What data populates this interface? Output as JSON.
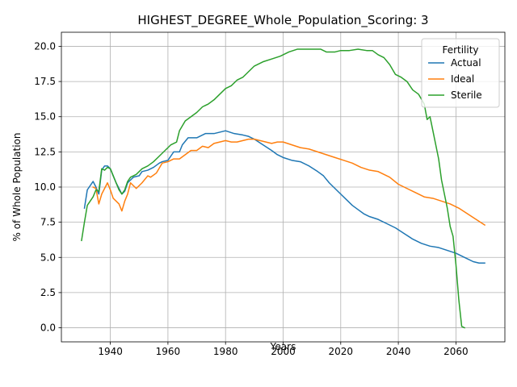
{
  "chart_data": {
    "type": "line",
    "title": "HIGHEST_DEGREE_Whole_Population_Scoring: 3",
    "xlabel": "Years",
    "ylabel": "% of Whole Population",
    "xlim": [
      1923,
      2077
    ],
    "ylim": [
      -1.0,
      21.0
    ],
    "xticks": [
      1940,
      1960,
      1980,
      2000,
      2020,
      2040,
      2060
    ],
    "yticks": [
      0.0,
      2.5,
      5.0,
      7.5,
      10.0,
      12.5,
      15.0,
      17.5,
      20.0
    ],
    "xtick_labels": [
      "1940",
      "1960",
      "1980",
      "2000",
      "2020",
      "2040",
      "2060"
    ],
    "ytick_labels": [
      "0.0",
      "2.5",
      "5.0",
      "7.5",
      "10.0",
      "12.5",
      "15.0",
      "17.5",
      "20.0"
    ],
    "grid": true,
    "legend": {
      "title": "Fertility",
      "placement": "top-right"
    },
    "series": [
      {
        "name": "Actual",
        "color": "#1f77b4",
        "points": [
          [
            1931,
            8.5
          ],
          [
            1932,
            9.8
          ],
          [
            1934,
            10.4
          ],
          [
            1935,
            10.0
          ],
          [
            1936,
            9.5
          ],
          [
            1937,
            11.2
          ],
          [
            1938,
            11.5
          ],
          [
            1939,
            11.5
          ],
          [
            1940,
            11.3
          ],
          [
            1941,
            10.8
          ],
          [
            1942,
            10.3
          ],
          [
            1944,
            9.5
          ],
          [
            1945,
            9.7
          ],
          [
            1946,
            10.3
          ],
          [
            1948,
            10.7
          ],
          [
            1950,
            10.8
          ],
          [
            1951,
            11.1
          ],
          [
            1953,
            11.2
          ],
          [
            1955,
            11.4
          ],
          [
            1957,
            11.7
          ],
          [
            1958,
            11.8
          ],
          [
            1960,
            11.9
          ],
          [
            1962,
            12.5
          ],
          [
            1964,
            12.5
          ],
          [
            1965,
            13.0
          ],
          [
            1967,
            13.5
          ],
          [
            1970,
            13.5
          ],
          [
            1973,
            13.8
          ],
          [
            1976,
            13.8
          ],
          [
            1980,
            14.0
          ],
          [
            1983,
            13.8
          ],
          [
            1986,
            13.7
          ],
          [
            1988,
            13.6
          ],
          [
            1990,
            13.4
          ],
          [
            1993,
            13.0
          ],
          [
            1996,
            12.6
          ],
          [
            1998,
            12.3
          ],
          [
            2000,
            12.1
          ],
          [
            2003,
            11.9
          ],
          [
            2006,
            11.8
          ],
          [
            2009,
            11.5
          ],
          [
            2012,
            11.1
          ],
          [
            2014,
            10.8
          ],
          [
            2016,
            10.3
          ],
          [
            2018,
            9.9
          ],
          [
            2020,
            9.5
          ],
          [
            2022,
            9.1
          ],
          [
            2024,
            8.7
          ],
          [
            2026,
            8.4
          ],
          [
            2028,
            8.1
          ],
          [
            2030,
            7.9
          ],
          [
            2033,
            7.7
          ],
          [
            2036,
            7.4
          ],
          [
            2039,
            7.1
          ],
          [
            2042,
            6.7
          ],
          [
            2045,
            6.3
          ],
          [
            2048,
            6.0
          ],
          [
            2051,
            5.8
          ],
          [
            2054,
            5.7
          ],
          [
            2057,
            5.5
          ],
          [
            2060,
            5.3
          ],
          [
            2063,
            5.0
          ],
          [
            2066,
            4.7
          ],
          [
            2068,
            4.6
          ],
          [
            2070,
            4.6
          ]
        ]
      },
      {
        "name": "Ideal",
        "color": "#ff7f0e",
        "points": [
          [
            1934,
            10.0
          ],
          [
            1935,
            9.9
          ],
          [
            1936,
            8.8
          ],
          [
            1937,
            9.5
          ],
          [
            1938,
            9.9
          ],
          [
            1939,
            10.3
          ],
          [
            1940,
            9.8
          ],
          [
            1941,
            9.2
          ],
          [
            1943,
            8.8
          ],
          [
            1944,
            8.3
          ],
          [
            1945,
            9.0
          ],
          [
            1946,
            9.5
          ],
          [
            1947,
            10.3
          ],
          [
            1948,
            10.1
          ],
          [
            1949,
            9.9
          ],
          [
            1951,
            10.3
          ],
          [
            1953,
            10.8
          ],
          [
            1954,
            10.7
          ],
          [
            1956,
            11.0
          ],
          [
            1958,
            11.7
          ],
          [
            1960,
            11.8
          ],
          [
            1962,
            12.0
          ],
          [
            1964,
            12.0
          ],
          [
            1966,
            12.3
          ],
          [
            1968,
            12.6
          ],
          [
            1970,
            12.6
          ],
          [
            1972,
            12.9
          ],
          [
            1974,
            12.8
          ],
          [
            1976,
            13.1
          ],
          [
            1978,
            13.2
          ],
          [
            1980,
            13.3
          ],
          [
            1982,
            13.2
          ],
          [
            1984,
            13.2
          ],
          [
            1986,
            13.3
          ],
          [
            1988,
            13.4
          ],
          [
            1990,
            13.4
          ],
          [
            1992,
            13.3
          ],
          [
            1994,
            13.2
          ],
          [
            1996,
            13.1
          ],
          [
            1998,
            13.2
          ],
          [
            2000,
            13.2
          ],
          [
            2003,
            13.0
          ],
          [
            2006,
            12.8
          ],
          [
            2009,
            12.7
          ],
          [
            2012,
            12.5
          ],
          [
            2015,
            12.3
          ],
          [
            2018,
            12.1
          ],
          [
            2021,
            11.9
          ],
          [
            2024,
            11.7
          ],
          [
            2027,
            11.4
          ],
          [
            2030,
            11.2
          ],
          [
            2033,
            11.1
          ],
          [
            2035,
            10.9
          ],
          [
            2037,
            10.7
          ],
          [
            2040,
            10.2
          ],
          [
            2043,
            9.9
          ],
          [
            2046,
            9.6
          ],
          [
            2049,
            9.3
          ],
          [
            2052,
            9.2
          ],
          [
            2055,
            9.0
          ],
          [
            2058,
            8.8
          ],
          [
            2061,
            8.5
          ],
          [
            2064,
            8.1
          ],
          [
            2067,
            7.7
          ],
          [
            2070,
            7.3
          ]
        ]
      },
      {
        "name": "Sterile",
        "color": "#2ca02c",
        "points": [
          [
            1930,
            6.2
          ],
          [
            1931,
            7.5
          ],
          [
            1932,
            8.7
          ],
          [
            1934,
            9.3
          ],
          [
            1935,
            9.8
          ],
          [
            1936,
            9.7
          ],
          [
            1937,
            11.3
          ],
          [
            1938,
            11.2
          ],
          [
            1939,
            11.4
          ],
          [
            1940,
            11.3
          ],
          [
            1941,
            10.8
          ],
          [
            1942,
            10.3
          ],
          [
            1943,
            9.8
          ],
          [
            1944,
            9.5
          ],
          [
            1945,
            9.8
          ],
          [
            1946,
            10.4
          ],
          [
            1947,
            10.7
          ],
          [
            1949,
            10.9
          ],
          [
            1951,
            11.3
          ],
          [
            1953,
            11.5
          ],
          [
            1955,
            11.8
          ],
          [
            1957,
            12.2
          ],
          [
            1959,
            12.6
          ],
          [
            1961,
            13.0
          ],
          [
            1963,
            13.2
          ],
          [
            1964,
            14.0
          ],
          [
            1966,
            14.7
          ],
          [
            1968,
            15.0
          ],
          [
            1970,
            15.3
          ],
          [
            1972,
            15.7
          ],
          [
            1974,
            15.9
          ],
          [
            1976,
            16.2
          ],
          [
            1978,
            16.6
          ],
          [
            1980,
            17.0
          ],
          [
            1982,
            17.2
          ],
          [
            1984,
            17.6
          ],
          [
            1986,
            17.8
          ],
          [
            1988,
            18.2
          ],
          [
            1990,
            18.6
          ],
          [
            1993,
            18.9
          ],
          [
            1996,
            19.1
          ],
          [
            1999,
            19.3
          ],
          [
            2002,
            19.6
          ],
          [
            2005,
            19.8
          ],
          [
            2008,
            19.8
          ],
          [
            2011,
            19.8
          ],
          [
            2013,
            19.8
          ],
          [
            2015,
            19.6
          ],
          [
            2018,
            19.6
          ],
          [
            2020,
            19.7
          ],
          [
            2023,
            19.7
          ],
          [
            2026,
            19.8
          ],
          [
            2029,
            19.7
          ],
          [
            2031,
            19.7
          ],
          [
            2033,
            19.4
          ],
          [
            2035,
            19.2
          ],
          [
            2037,
            18.7
          ],
          [
            2039,
            18.0
          ],
          [
            2041,
            17.8
          ],
          [
            2043,
            17.5
          ],
          [
            2045,
            16.9
          ],
          [
            2047,
            16.6
          ],
          [
            2049,
            15.9
          ],
          [
            2050,
            14.8
          ],
          [
            2051,
            15.0
          ],
          [
            2052,
            14.0
          ],
          [
            2053,
            13.0
          ],
          [
            2054,
            12.0
          ],
          [
            2055,
            10.5
          ],
          [
            2056,
            9.5
          ],
          [
            2057,
            8.5
          ],
          [
            2058,
            7.2
          ],
          [
            2059,
            6.5
          ],
          [
            2060,
            4.5
          ],
          [
            2061,
            2.0
          ],
          [
            2062,
            0.1
          ],
          [
            2063,
            0.0
          ]
        ]
      }
    ]
  }
}
